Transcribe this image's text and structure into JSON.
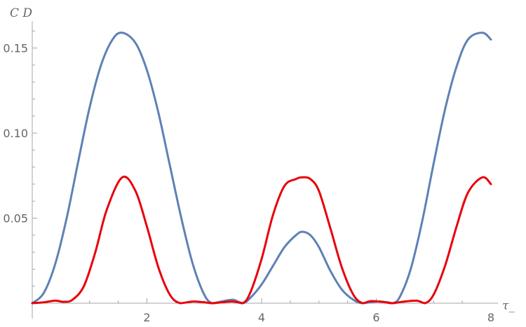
{
  "chart_data": {
    "type": "line",
    "xlabel": "τ_",
    "ylabel": "C D",
    "xlim": [
      0,
      8
    ],
    "ylim": [
      0,
      0.17
    ],
    "x_ticks": [
      2,
      4,
      6,
      8
    ],
    "y_ticks": [
      0.05,
      0.1,
      0.15
    ],
    "y_tick_labels": [
      "0.05",
      "0.10",
      "0.15"
    ],
    "grid": false,
    "series": [
      {
        "color": "#5e81b5",
        "x": [
          0,
          0.2,
          0.4,
          0.6,
          0.8,
          1.0,
          1.2,
          1.4,
          1.57,
          1.8,
          2.0,
          2.2,
          2.4,
          2.6,
          2.8,
          3.0,
          3.14,
          3.3,
          3.5,
          3.67,
          3.8,
          4.0,
          4.2,
          4.4,
          4.6,
          4.71,
          4.85,
          5.0,
          5.2,
          5.4,
          5.6,
          5.76,
          6.0,
          6.2,
          6.28,
          6.4,
          6.6,
          6.8,
          7.0,
          7.2,
          7.4,
          7.6,
          7.85,
          8.0
        ],
        "y": [
          0,
          0.006,
          0.023,
          0.05,
          0.083,
          0.115,
          0.14,
          0.155,
          0.159,
          0.153,
          0.137,
          0.112,
          0.081,
          0.05,
          0.023,
          0.005,
          0,
          0.001,
          0.002,
          0,
          0.003,
          0.011,
          0.022,
          0.033,
          0.04,
          0.042,
          0.04,
          0.033,
          0.019,
          0.008,
          0.002,
          0,
          0.001,
          0.0005,
          0,
          0.003,
          0.02,
          0.048,
          0.082,
          0.114,
          0.139,
          0.155,
          0.159,
          0.155
        ]
      },
      {
        "color": "#e8000b",
        "x": [
          0,
          0.2,
          0.4,
          0.55,
          0.7,
          0.9,
          1.1,
          1.3,
          1.57,
          1.8,
          2.0,
          2.2,
          2.4,
          2.58,
          2.8,
          3.0,
          3.14,
          3.3,
          3.5,
          3.67,
          3.8,
          4.0,
          4.2,
          4.4,
          4.6,
          4.71,
          4.85,
          5.0,
          5.2,
          5.4,
          5.6,
          5.76,
          5.9,
          6.1,
          6.28,
          6.45,
          6.7,
          6.85,
          7.0,
          7.2,
          7.4,
          7.6,
          7.85,
          8.0
        ],
        "y": [
          0,
          0.0005,
          0.0015,
          0.0008,
          0.002,
          0.01,
          0.03,
          0.055,
          0.074,
          0.066,
          0.045,
          0.021,
          0.005,
          0,
          0.001,
          0.0005,
          0,
          0.0005,
          0.001,
          0,
          0.006,
          0.026,
          0.052,
          0.069,
          0.073,
          0.074,
          0.073,
          0.066,
          0.044,
          0.021,
          0.005,
          0,
          0.0012,
          0.0008,
          0,
          0.0008,
          0.0015,
          0,
          0.005,
          0.022,
          0.045,
          0.065,
          0.074,
          0.07
        ]
      }
    ]
  }
}
